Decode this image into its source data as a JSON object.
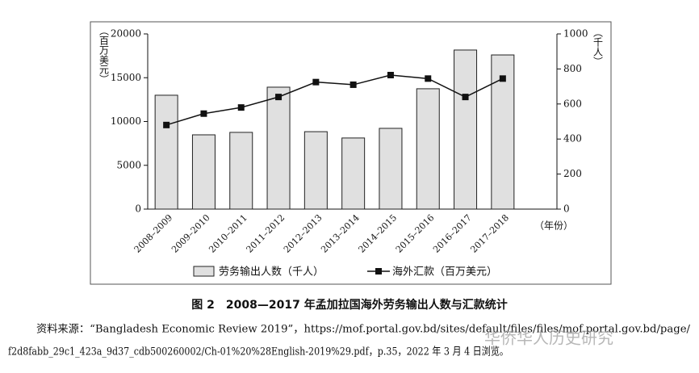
{
  "chart_data": {
    "type": "bar",
    "categories": [
      "2008–2009",
      "2009–2010",
      "2010–2011",
      "2011–2012",
      "2012–2013",
      "2013–2014",
      "2014–2015",
      "2015–2016",
      "2016–2017",
      "2017–2018"
    ],
    "series": [
      {
        "name": "劳务输出人数（千人）",
        "type": "bar",
        "axis": "y2",
        "color": "#e0e0e0",
        "values": [
          650,
          424,
          438,
          696,
          442,
          406,
          461,
          687,
          908,
          880
        ]
      },
      {
        "name": "海外汇款（百万美元）",
        "type": "line",
        "axis": "y",
        "color": "#111111",
        "values": [
          9600,
          10900,
          11600,
          12800,
          14500,
          14200,
          15300,
          14900,
          12800,
          14900
        ]
      }
    ],
    "ylabel": "（百万美元）",
    "y2label": "（千人）",
    "xlabel": "（年份）",
    "ylim": [
      0,
      20000
    ],
    "yticks": [
      0,
      5000,
      10000,
      15000,
      20000
    ],
    "y2lim": [
      0,
      1000
    ],
    "y2ticks": [
      0,
      200,
      400,
      600,
      800,
      1000
    ]
  },
  "caption": "图 2　2008—2017 年孟加拉国海外劳务输出人数与汇款统计",
  "source": [
    "资料来源：“Bangladesh Economic Review 2019”，https://mof.portal.gov.bd/sites/default/files/files/mof.portal.gov.bd/page/",
    "f2d8fabb_29c1_423a_9d37_cdb500260002/Ch-01%20%28English-2019%29.pdf，p.35，2022 年 3 月 4 日浏览。"
  ],
  "watermark": "华侨华人历史研究"
}
